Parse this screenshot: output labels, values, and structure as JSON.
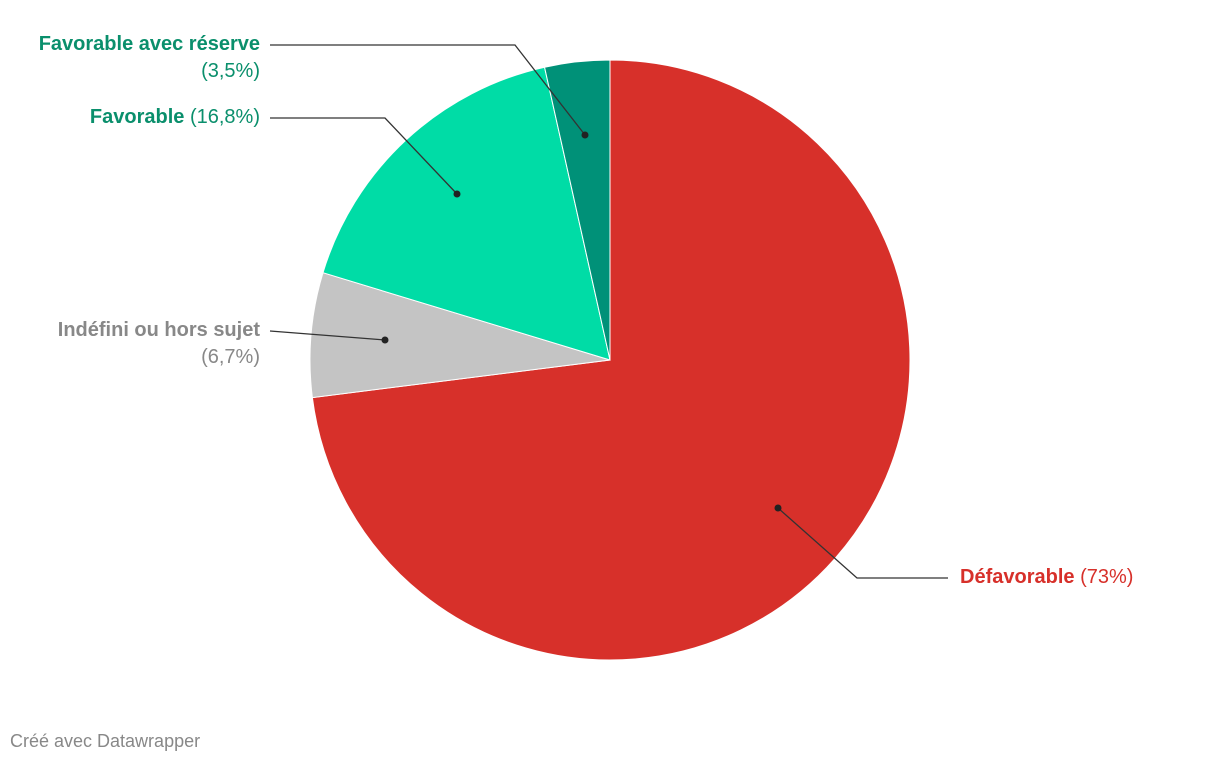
{
  "chart_data": {
    "type": "pie",
    "categories": [
      "Défavorable",
      "Indéfini ou hors sujet",
      "Favorable",
      "Favorable avec réserve"
    ],
    "values": [
      73,
      6.7,
      16.8,
      3.5
    ],
    "value_labels": [
      "(73%)",
      "(6,7%)",
      "(16,8%)",
      "(3,5%)"
    ],
    "colors": [
      "#d7302a",
      "#c4c4c4",
      "#00dca6",
      "#009178"
    ],
    "footer": "Créé avec Datawrapper"
  }
}
